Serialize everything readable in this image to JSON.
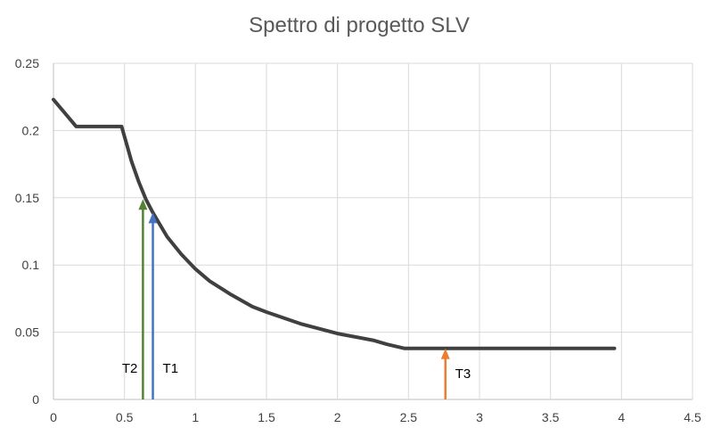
{
  "chart_data": {
    "type": "line",
    "title": "Spettro di progetto SLV",
    "xlabel": "",
    "ylabel": "",
    "xlim": [
      0,
      4.5
    ],
    "ylim": [
      0,
      0.25
    ],
    "x_ticks": [
      "0",
      "0.5",
      "1",
      "1.5",
      "2",
      "2.5",
      "3",
      "3.5",
      "4",
      "4.5"
    ],
    "y_ticks": [
      "0",
      "0.05",
      "0.1",
      "0.15",
      "0.2",
      "0.25"
    ],
    "grid": true,
    "legend": "none",
    "series": [
      {
        "color": "#404040",
        "x": [
          0,
          0.16,
          0.48,
          0.55,
          0.6,
          0.65,
          0.7,
          0.75,
          0.8,
          0.9,
          1.0,
          1.1,
          1.25,
          1.4,
          1.5,
          1.75,
          2.0,
          2.25,
          2.35,
          2.47,
          2.5,
          3.0,
          3.5,
          3.95
        ],
        "y": [
          0.223,
          0.203,
          0.203,
          0.177,
          0.162,
          0.149,
          0.139,
          0.13,
          0.121,
          0.108,
          0.097,
          0.088,
          0.078,
          0.069,
          0.065,
          0.056,
          0.049,
          0.044,
          0.041,
          0.038,
          0.038,
          0.038,
          0.038,
          0.038
        ]
      }
    ],
    "annotations": [
      {
        "label": "T2",
        "x": 0.63,
        "y": 0.149,
        "color": "#548235",
        "label_side": "left"
      },
      {
        "label": "T1",
        "x": 0.7,
        "y": 0.139,
        "color": "#4472c4",
        "label_side": "right"
      },
      {
        "label": "T3",
        "x": 2.76,
        "y": 0.038,
        "color": "#ed7d31",
        "label_side": "right"
      }
    ]
  }
}
